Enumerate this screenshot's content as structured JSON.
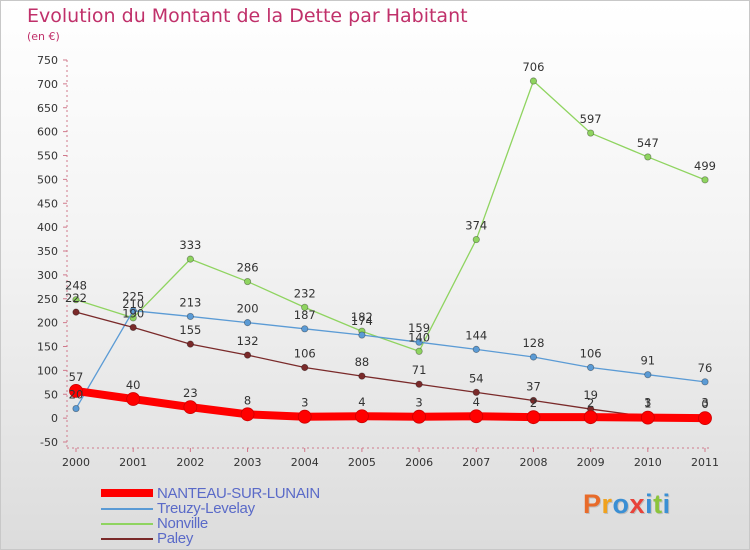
{
  "title": "Evolution du Montant de la Dette par Habitant",
  "unit_label": "(en €)",
  "logo": {
    "text": "Proxiti",
    "colors": [
      "#e86b2a",
      "#f0a21e",
      "#3a8fd4",
      "#e8433a",
      "#3a8fd4",
      "#8cc43c",
      "#3a8fd4"
    ]
  },
  "chart_data": {
    "type": "line",
    "title": "Evolution du Montant de la Dette par Habitant",
    "ylabel": "(en €)",
    "xlabel": "",
    "ylim": [
      -50,
      750
    ],
    "ytick_step": 50,
    "grid": false,
    "legend": "bottom-left",
    "x": [
      "2000",
      "2001",
      "2002",
      "2003",
      "2004",
      "2005",
      "2006",
      "2007",
      "2008",
      "2009",
      "2010",
      "2011"
    ],
    "series": [
      {
        "name": "Nonville",
        "color": "#8fd460",
        "values": [
          248,
          210,
          333,
          286,
          232,
          182,
          140,
          374,
          706,
          597,
          547,
          499
        ],
        "labels": [
          "248",
          "210",
          "333",
          "286",
          "232",
          "182",
          "140",
          "374",
          "706",
          "597",
          "547",
          "499"
        ]
      },
      {
        "name": "Treuzy-Levelay",
        "color": "#5b9bd5",
        "values": [
          20,
          225,
          213,
          200,
          187,
          174,
          159,
          144,
          128,
          106,
          91,
          76
        ],
        "labels": [
          "20",
          "225",
          "213",
          "200",
          "187",
          "174",
          "159",
          "144",
          "128",
          "106",
          "91",
          "76"
        ]
      },
      {
        "name": "Paley",
        "color": "#7a2a2a",
        "values": [
          222,
          190,
          155,
          132,
          106,
          88,
          71,
          54,
          37,
          19,
          3,
          3
        ],
        "labels": [
          "222",
          "190",
          "155",
          "132",
          "106",
          "88",
          "71",
          "54",
          "37",
          "19",
          "3",
          "3"
        ]
      },
      {
        "name": "NANTEAU-SUR-LUNAIN",
        "color": "#ff0000",
        "values": [
          57,
          40,
          23,
          8,
          3,
          4,
          3,
          4,
          2,
          2,
          1,
          0
        ],
        "labels": [
          "57",
          "40",
          "23",
          "8",
          "3",
          "4",
          "3",
          "4",
          "2",
          "2",
          "1",
          "0"
        ]
      }
    ],
    "legend_order": [
      "NANTEAU-SUR-LUNAIN",
      "Treuzy-Levelay",
      "Nonville",
      "Paley"
    ]
  }
}
